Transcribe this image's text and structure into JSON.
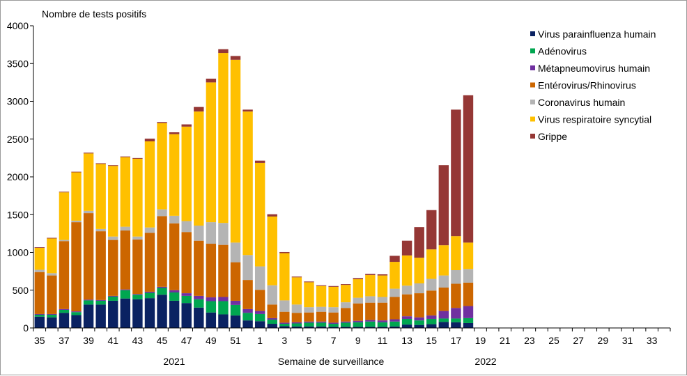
{
  "chart_data": {
    "type": "bar",
    "stacked": true,
    "ylabel": "Nombre de tests positifs",
    "xlabel": "Semaine de surveillance",
    "year_labels": [
      "2021",
      "2022"
    ],
    "ylim": [
      0,
      4000
    ],
    "yticks": [
      0,
      500,
      1000,
      1500,
      2000,
      2500,
      3000,
      3500,
      4000
    ],
    "weeks": [
      35,
      36,
      37,
      38,
      39,
      40,
      41,
      42,
      43,
      44,
      45,
      46,
      47,
      48,
      49,
      50,
      51,
      52,
      1,
      2,
      3,
      4,
      5,
      6,
      7,
      8,
      9,
      10,
      11,
      12,
      13,
      14,
      15,
      16,
      17,
      18,
      19,
      20,
      21,
      22,
      23,
      24,
      25,
      26,
      27,
      28,
      29,
      30,
      31,
      32,
      33,
      34
    ],
    "tick_labels": [
      "35",
      "37",
      "39",
      "41",
      "43",
      "45",
      "47",
      "49",
      "51",
      "1",
      "3",
      "5",
      "7",
      "9",
      "11",
      "13",
      "15",
      "17",
      "19",
      "21",
      "23",
      "25",
      "27",
      "29",
      "31",
      "33"
    ],
    "series": [
      {
        "name": "Virus parainfluenza humain",
        "color": "#0a2262",
        "values": [
          150,
          140,
          200,
          170,
          310,
          310,
          360,
          390,
          380,
          395,
          440,
          360,
          330,
          270,
          205,
          180,
          165,
          100,
          90,
          55,
          25,
          20,
          20,
          20,
          15,
          15,
          15,
          15,
          15,
          20,
          45,
          40,
          50,
          80,
          75,
          65
        ]
      },
      {
        "name": "Adénovirus",
        "color": "#00a650",
        "values": [
          25,
          35,
          40,
          40,
          55,
          50,
          55,
          110,
          60,
          70,
          90,
          110,
          95,
          110,
          150,
          175,
          140,
          100,
          95,
          55,
          30,
          40,
          50,
          50,
          40,
          55,
          60,
          70,
          60,
          65,
          75,
          60,
          70,
          45,
          50,
          65
        ]
      },
      {
        "name": "Métapneumovirus humain",
        "color": "#7030a0",
        "values": [
          10,
          10,
          10,
          10,
          10,
          10,
          10,
          10,
          10,
          15,
          15,
          30,
          35,
          45,
          50,
          55,
          55,
          50,
          40,
          20,
          15,
          15,
          15,
          15,
          15,
          15,
          20,
          20,
          25,
          30,
          35,
          40,
          45,
          100,
          140,
          160
        ]
      },
      {
        "name": "Entérovirus/Rhinovirus",
        "color": "#cc6600",
        "values": [
          555,
          510,
          900,
          1180,
          1145,
          910,
          740,
          780,
          720,
          780,
          935,
          885,
          810,
          730,
          710,
          690,
          510,
          385,
          280,
          180,
          145,
          125,
          120,
          130,
          135,
          180,
          230,
          230,
          235,
          295,
          290,
          320,
          330,
          310,
          320,
          310
        ]
      },
      {
        "name": "Coronavirus humain",
        "color": "#b4b4b4",
        "values": [
          30,
          30,
          15,
          20,
          30,
          30,
          45,
          50,
          40,
          70,
          90,
          100,
          145,
          200,
          285,
          290,
          260,
          330,
          310,
          255,
          150,
          110,
          70,
          65,
          70,
          75,
          75,
          85,
          75,
          110,
          115,
          130,
          155,
          160,
          180,
          180
        ]
      },
      {
        "name": "Virus respiratoire syncytial",
        "color": "#ffc000",
        "values": [
          290,
          460,
          630,
          640,
          760,
          860,
          935,
          920,
          1030,
          1140,
          1140,
          1080,
          1250,
          1510,
          1850,
          2250,
          2420,
          1900,
          1370,
          910,
          625,
          360,
          330,
          275,
          270,
          230,
          245,
          280,
          285,
          355,
          400,
          340,
          390,
          400,
          450,
          350
        ]
      },
      {
        "name": "Grippe",
        "color": "#953735",
        "values": [
          8,
          8,
          8,
          8,
          10,
          10,
          10,
          10,
          10,
          35,
          15,
          25,
          30,
          60,
          50,
          50,
          50,
          25,
          30,
          30,
          15,
          10,
          10,
          10,
          10,
          10,
          15,
          15,
          15,
          80,
          195,
          405,
          520,
          1060,
          1675,
          1950
        ]
      }
    ],
    "legend_position": "right"
  }
}
